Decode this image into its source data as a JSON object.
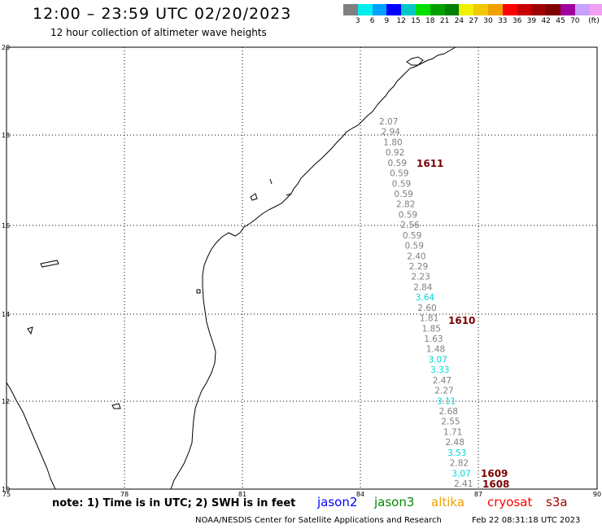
{
  "header": {
    "title": "12:00 – 23:59 UTC 02/20/2023",
    "subtitle": "12 hour collection of altimeter wave heights"
  },
  "legend": {
    "colors": [
      "#808080",
      "#00f0f0",
      "#00a0ff",
      "#0000ff",
      "#00c8c8",
      "#00e000",
      "#00a000",
      "#008000",
      "#f0f000",
      "#f0c800",
      "#f0a000",
      "#ff0000",
      "#c80000",
      "#a00000",
      "#800000",
      "#a000a0",
      "#c8a0ff",
      "#f0a0f0",
      "#000000"
    ],
    "labels": [
      "3",
      "6",
      "9",
      "12",
      "15",
      "18",
      "21",
      "24",
      "27",
      "30",
      "33",
      "36",
      "39",
      "42",
      "45",
      "70",
      "(ft)"
    ]
  },
  "axes": {
    "x_ticks": [
      "75",
      "78",
      "81",
      "84",
      "87",
      "90"
    ],
    "y_ticks": [
      "20",
      "18",
      "16",
      "14",
      "12",
      "10"
    ]
  },
  "map_data": {
    "observations": [
      {
        "text": "2.07",
        "color": "#808080"
      },
      {
        "text": "2.94",
        "color": "#808080"
      },
      {
        "text": "1.80",
        "color": "#808080"
      },
      {
        "text": "0.92",
        "color": "#808080"
      },
      {
        "text": "0.59",
        "color": "#808080"
      },
      {
        "text": "0.59",
        "color": "#808080"
      },
      {
        "text": "0.59",
        "color": "#808080"
      },
      {
        "text": "0.59",
        "color": "#808080"
      },
      {
        "text": "2.82",
        "color": "#808080"
      },
      {
        "text": "0.59",
        "color": "#808080"
      },
      {
        "text": "2.56",
        "color": "#808080"
      },
      {
        "text": "0.59",
        "color": "#808080"
      },
      {
        "text": "0.59",
        "color": "#808080"
      },
      {
        "text": "2.40",
        "color": "#808080"
      },
      {
        "text": "2.29",
        "color": "#808080"
      },
      {
        "text": "2.23",
        "color": "#808080"
      },
      {
        "text": "2.84",
        "color": "#808080"
      },
      {
        "text": "3.64",
        "color": "#00d8d8"
      },
      {
        "text": "2.60",
        "color": "#808080"
      },
      {
        "text": "1.81",
        "color": "#808080"
      },
      {
        "text": "1.85",
        "color": "#808080"
      },
      {
        "text": "1.63",
        "color": "#808080"
      },
      {
        "text": "1.48",
        "color": "#808080"
      },
      {
        "text": "3.07",
        "color": "#00d8d8"
      },
      {
        "text": "3.33",
        "color": "#00d8d8"
      },
      {
        "text": "2.47",
        "color": "#808080"
      },
      {
        "text": "2.27",
        "color": "#808080"
      },
      {
        "text": "3.11",
        "color": "#00d8d8"
      },
      {
        "text": "2.68",
        "color": "#808080"
      },
      {
        "text": "2.55",
        "color": "#808080"
      },
      {
        "text": "1.71",
        "color": "#808080"
      },
      {
        "text": "2.48",
        "color": "#808080"
      },
      {
        "text": "3.53",
        "color": "#00d8d8"
      },
      {
        "text": "2.82",
        "color": "#808080"
      },
      {
        "text": "3.07",
        "color": "#00d8d8"
      },
      {
        "text": "2.41",
        "color": "#808080"
      }
    ],
    "pass_labels": [
      "1611",
      "1610",
      "1609",
      "1608"
    ]
  },
  "footer": {
    "note": "note: 1) Time is in UTC; 2) SWH is in feet",
    "satellites": [
      {
        "name": "jason2",
        "color": "#0000ff"
      },
      {
        "name": "jason3",
        "color": "#008800"
      },
      {
        "name": "altika",
        "color": "#f0a000"
      },
      {
        "name": "cryosat",
        "color": "#ff0000"
      },
      {
        "name": "s3a",
        "color": "#a00000"
      }
    ],
    "credit": "NOAA/NESDIS Center for Satellite Applications and Research",
    "timestamp": "Feb 22 08:31:18 UTC 2023"
  }
}
